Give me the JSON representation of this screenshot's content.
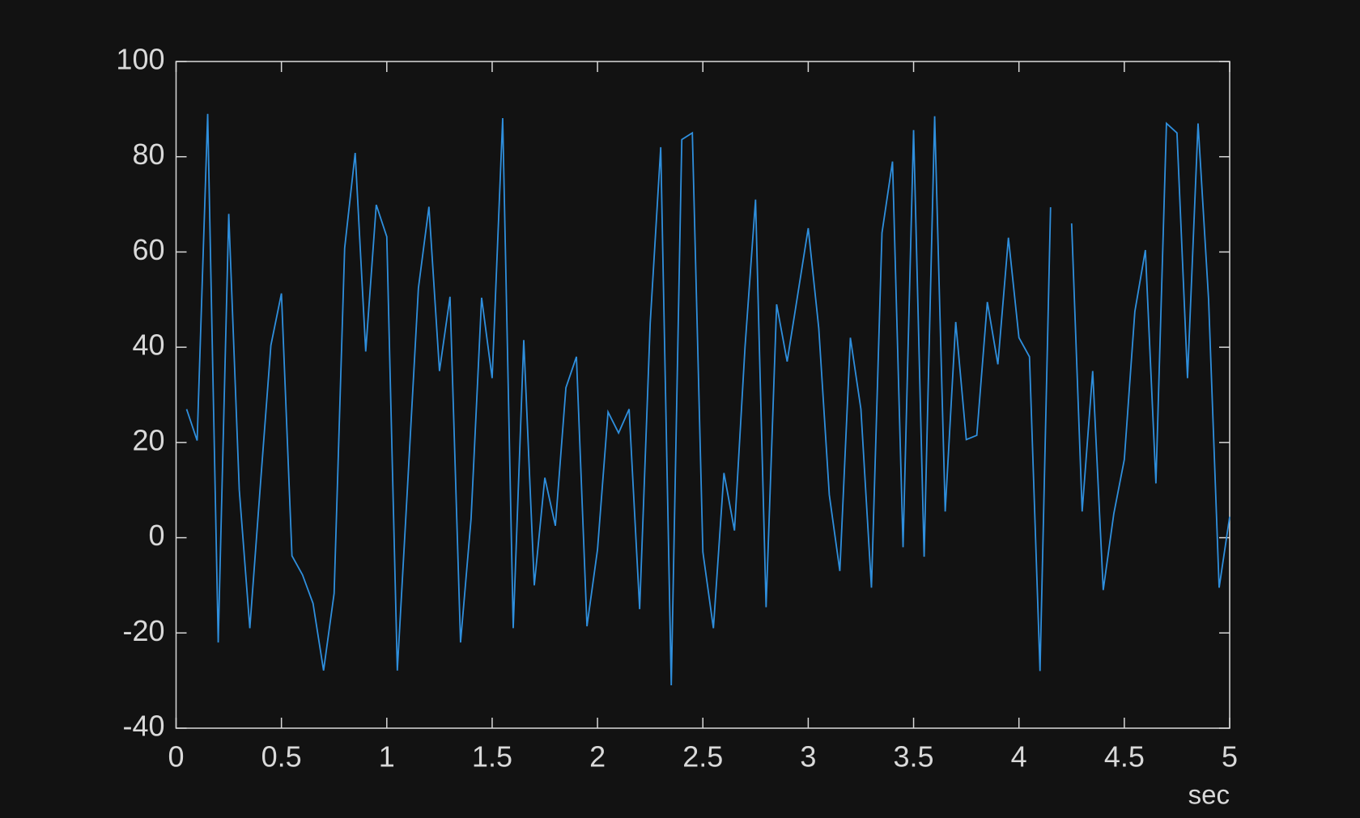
{
  "chart_data": {
    "type": "line",
    "xlabel": "sec",
    "x": [
      0.05,
      0.1,
      0.15,
      0.2,
      0.25,
      0.3,
      0.35,
      0.4,
      0.45,
      0.5,
      0.55,
      0.6,
      0.65,
      0.7,
      0.75,
      0.8,
      0.85,
      0.9,
      0.95,
      1,
      1.05,
      1.1,
      1.15,
      1.2,
      1.25,
      1.3,
      1.35,
      1.4,
      1.45,
      1.5,
      1.55,
      1.6,
      1.65,
      1.7,
      1.75,
      1.8,
      1.85,
      1.9,
      1.95,
      2,
      2.05,
      2.1,
      2.15,
      2.2,
      2.25,
      2.3,
      2.35,
      2.4,
      2.45,
      2.5,
      2.55,
      2.6,
      2.65,
      2.7,
      2.75,
      2.8,
      2.85,
      2.9,
      2.95,
      3,
      3.05,
      3.1,
      3.15,
      3.2,
      3.25,
      3.3,
      3.35,
      3.4,
      3.45,
      3.5,
      3.55,
      3.6,
      3.65,
      3.7,
      3.75,
      3.8,
      3.85,
      3.9,
      3.95,
      4,
      4.05,
      4.1,
      4.15,
      4.2,
      4.25,
      4.3,
      4.35,
      4.4,
      4.45,
      4.5,
      4.55,
      4.6,
      4.65,
      4.7,
      4.75,
      4.8,
      4.85,
      4.9,
      4.95,
      5
    ],
    "values": [
      27,
      20.4,
      89,
      -22,
      68,
      10,
      -19,
      11,
      40.4,
      51.3,
      -3.8,
      -7.8,
      -13.8,
      -27.9,
      -11.7,
      60.8,
      80.8,
      39.1,
      69.9,
      63.2,
      -27.9,
      12,
      52.4,
      69.5,
      35,
      50.6,
      -22,
      4,
      50.4,
      33.5,
      88.1,
      -19,
      41.5,
      -10,
      12.6,
      2.5,
      31.5,
      38,
      -18.6,
      -2.5,
      26.4,
      22,
      27,
      -15,
      45,
      82,
      -31,
      83.6,
      85,
      -3,
      -19,
      13.6,
      1.5,
      40,
      71,
      -14.6,
      49,
      37,
      51,
      65,
      44,
      9,
      -7,
      42,
      27,
      -10.5,
      64,
      79,
      -2,
      85.6,
      -4,
      88.5,
      5.5,
      45.3,
      20.6,
      21.5,
      49.5,
      36.4,
      63,
      42,
      38,
      -28,
      69.4,
      null,
      66,
      5.5,
      35,
      -11,
      5,
      16.4,
      47.5,
      60.4,
      11.4,
      87,
      85,
      33.5,
      87,
      50,
      -10.5,
      4.4
    ],
    "color": "#2f8fdd",
    "xlim": [
      0,
      5
    ],
    "xticks": [
      0,
      0.5,
      1,
      1.5,
      2,
      2.5,
      3,
      3.5,
      4,
      4.5,
      5
    ],
    "ylim": [
      -40,
      100
    ],
    "yticks": [
      -40,
      -20,
      0,
      20,
      40,
      60,
      80,
      100
    ],
    "grid": false
  }
}
